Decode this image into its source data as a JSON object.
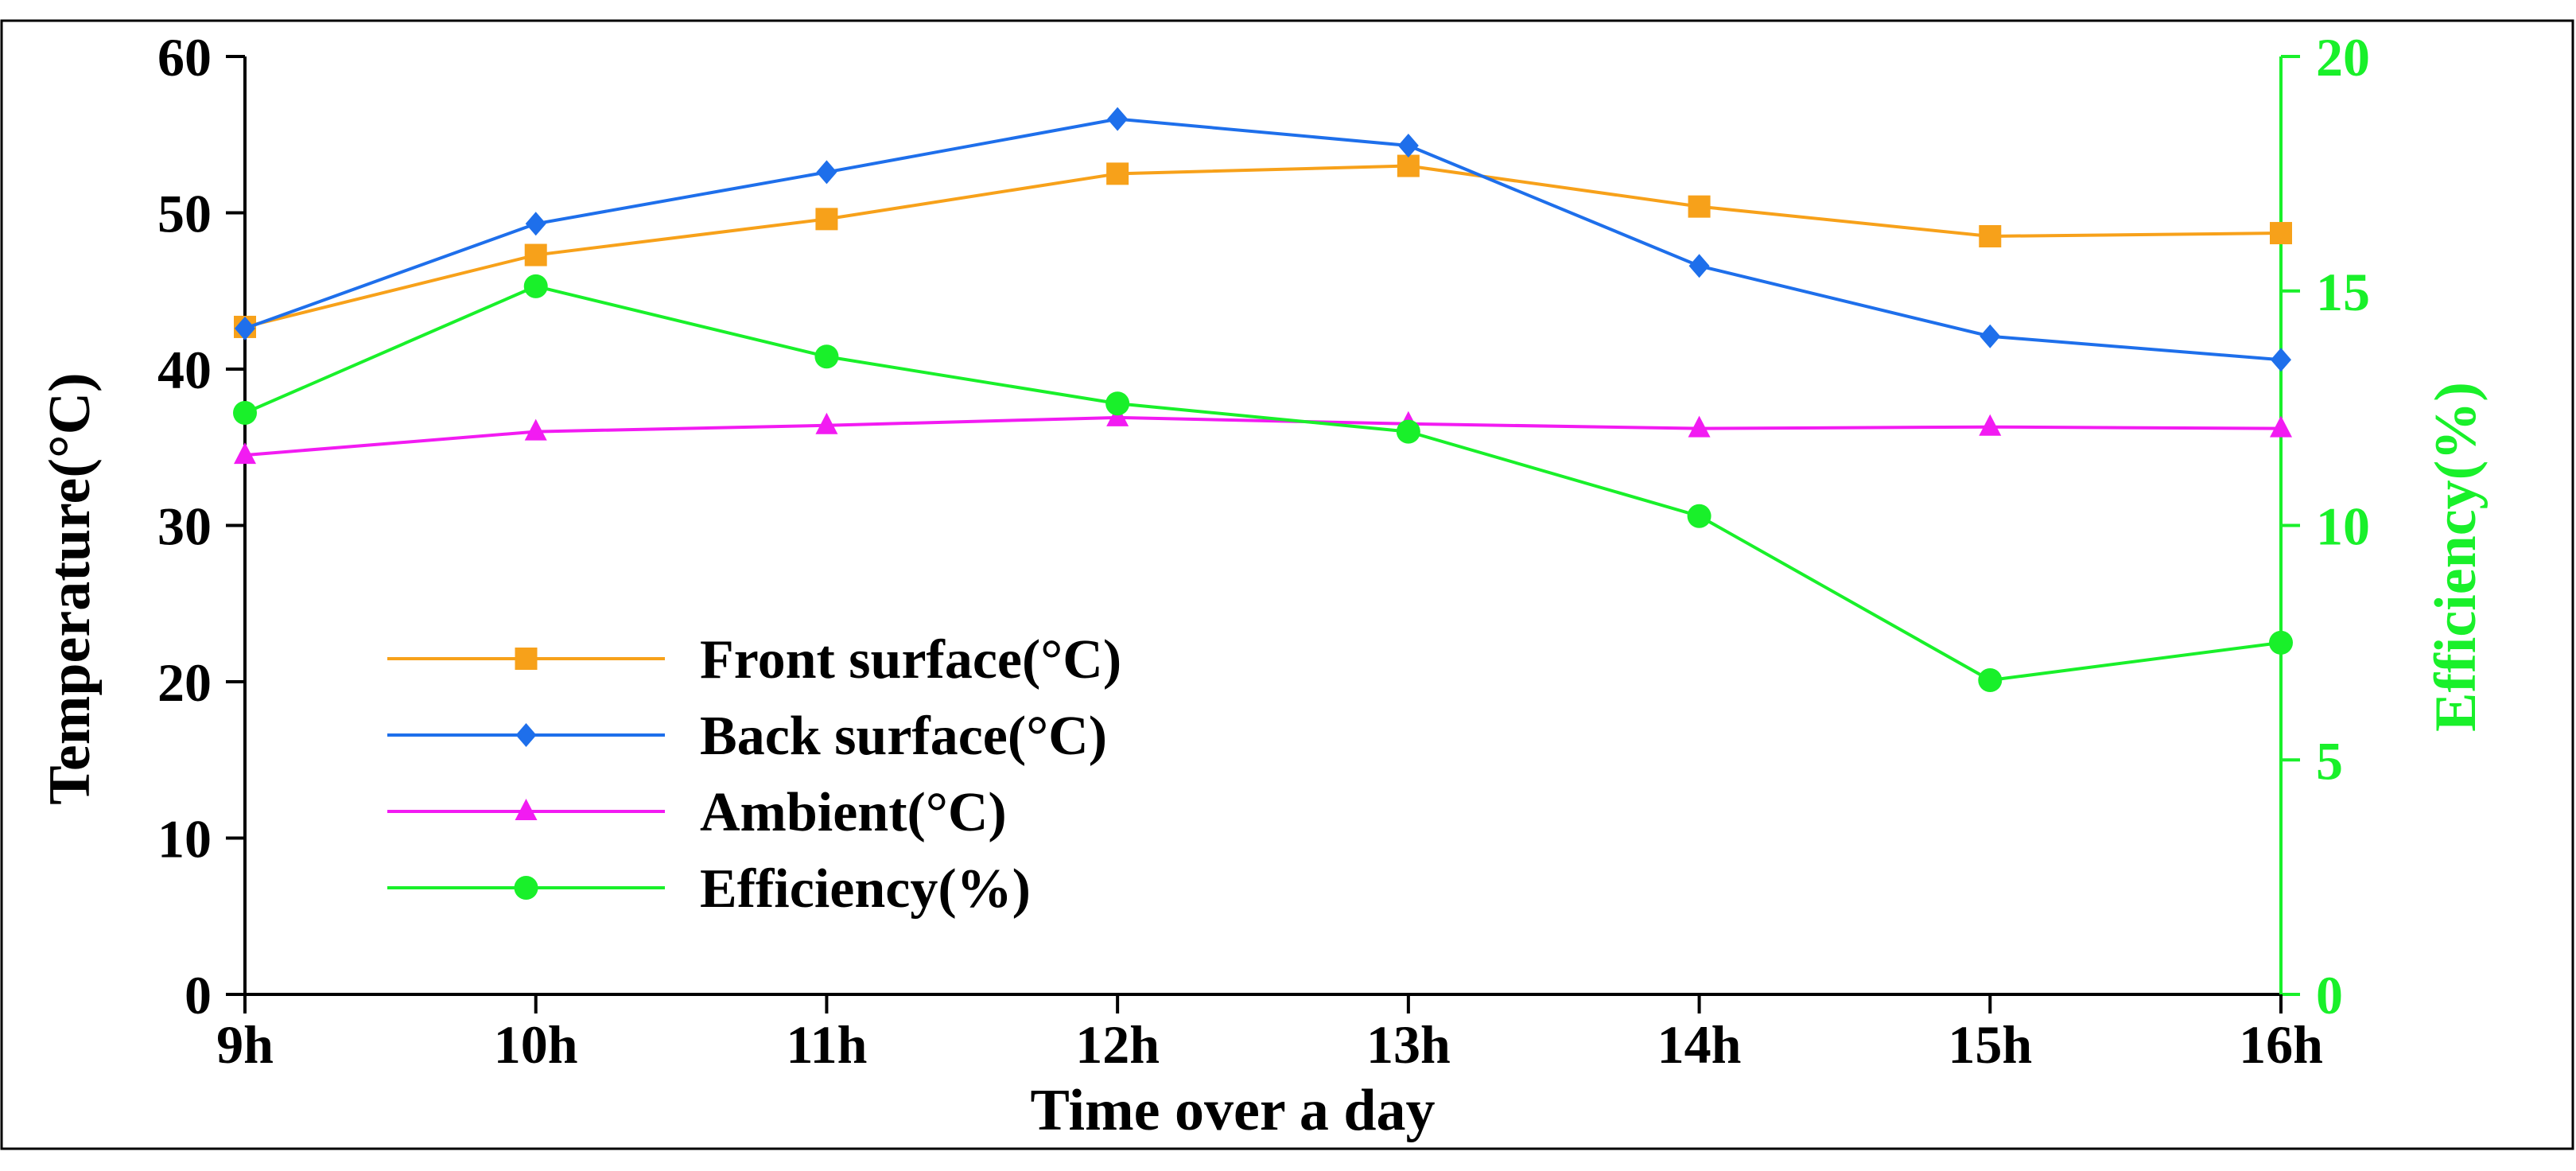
{
  "chart_data": {
    "type": "line",
    "title": "",
    "xlabel": "Time over a day",
    "ylabel": "Temperature(°C)",
    "y2label": "Efficiency(%)",
    "categories": [
      "9h",
      "10h",
      "11h",
      "12h",
      "13h",
      "14h",
      "15h",
      "16h"
    ],
    "ylim": [
      0,
      60
    ],
    "y2lim": [
      0,
      20
    ],
    "yticks": [
      "0",
      "10",
      "20",
      "30",
      "40",
      "50",
      "60"
    ],
    "y2ticks": [
      "0",
      "5",
      "10",
      "15",
      "20"
    ],
    "grid": false,
    "legend_position": "center-left",
    "series": [
      {
        "name": "Front surface(°C)",
        "axis": "left",
        "marker": "square",
        "color": "#F7A11A",
        "values": [
          42.7,
          47.3,
          49.6,
          52.5,
          53.0,
          50.4,
          48.5,
          48.7
        ]
      },
      {
        "name": "Back surface(°C)",
        "axis": "left",
        "marker": "diamond",
        "color": "#1E6FEB",
        "values": [
          42.6,
          49.3,
          52.6,
          56.0,
          54.3,
          46.6,
          42.1,
          40.6
        ]
      },
      {
        "name": "Ambient(°C)",
        "axis": "left",
        "marker": "triangle",
        "color": "#F21BF2",
        "values": [
          34.5,
          36.0,
          36.4,
          36.9,
          36.5,
          36.2,
          36.3,
          36.2
        ]
      },
      {
        "name": "Efficiency(%)",
        "axis": "right",
        "marker": "circle",
        "color": "#19F02A",
        "values": [
          12.4,
          15.1,
          13.6,
          12.6,
          12.0,
          10.2,
          6.7,
          7.5
        ]
      }
    ]
  }
}
